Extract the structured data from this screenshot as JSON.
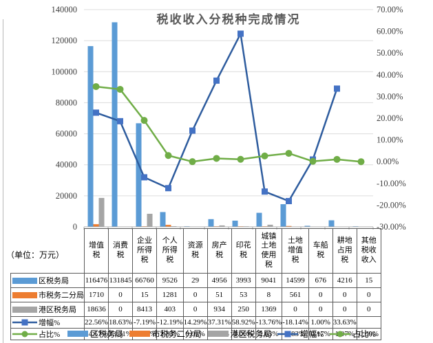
{
  "title": "税收收入分税种完成情况",
  "units_note": "（单位：万元）",
  "colors": {
    "bar_blue": "#5B9BD5",
    "bar_orange": "#ED7D31",
    "bar_gray": "#A5A5A5",
    "line_navy": "#2E5C9E",
    "marker_navy": "#4472C4",
    "line_green": "#70AD47",
    "title_gray": "#595959",
    "gridline": "#DCDCDC",
    "axis_line": "#ACACAC",
    "axis_text": "#404040",
    "table_border": "#595959"
  },
  "chart_data": {
    "type": "bar+line combo with data table",
    "title": "税收收入分税种完成情况",
    "categories": [
      "增值税",
      "消费税",
      "企业所得税",
      "个人所得税",
      "资源税",
      "房产税",
      "印花税",
      "城镇土地使用税",
      "土地增值税",
      "车船税",
      "耕地占用税",
      "其他税收收入"
    ],
    "bar_series": [
      {
        "name": "区税务局",
        "color": "#5B9BD5",
        "values": [
          116476,
          131845,
          66760,
          9526,
          29,
          4956,
          3993,
          9041,
          14599,
          676,
          4216,
          15
        ]
      },
      {
        "name": "市税务二分局",
        "color": "#ED7D31",
        "values": [
          1710,
          0,
          15,
          1281,
          0,
          51,
          53,
          8,
          561,
          0,
          0,
          0
        ]
      },
      {
        "name": "港区税务局",
        "color": "#A5A5A5",
        "values": [
          18636,
          0,
          8413,
          403,
          0,
          934,
          250,
          1369,
          0,
          0,
          0,
          0
        ]
      }
    ],
    "line_series": [
      {
        "name": "增幅%",
        "axis": "right",
        "marker": "square",
        "color": "#4472C4",
        "line_color": "#2E5C9E",
        "values": [
          22.56,
          18.63,
          -7.19,
          -12.19,
          14.29,
          37.31,
          58.92,
          -13.76,
          -18.14,
          1.0,
          33.63,
          null
        ]
      },
      {
        "name": "占比%",
        "axis": "right",
        "marker": "circle",
        "color": "#70AD47",
        "line_color": "#70AD47",
        "values": [
          34.57,
          33.31,
          19.0,
          2.83,
          0.01,
          1.5,
          1.09,
          2.63,
          3.83,
          0.17,
          1.07,
          0.0
        ]
      }
    ],
    "left_axis": {
      "min": 0,
      "max": 140000,
      "step": 20000,
      "tick_labels": [
        "0",
        "20000",
        "40000",
        "60000",
        "80000",
        "100000",
        "120000",
        "140000"
      ]
    },
    "right_axis": {
      "min": -30,
      "max": 70,
      "step": 10,
      "tick_labels": [
        "-30.00%",
        "-20.00%",
        "-10.00%",
        "0.00%",
        "10.00%",
        "20.00%",
        "30.00%",
        "40.00%",
        "50.00%",
        "60.00%",
        "70.00%"
      ]
    },
    "legend_position": "bottom",
    "grid": true
  }
}
